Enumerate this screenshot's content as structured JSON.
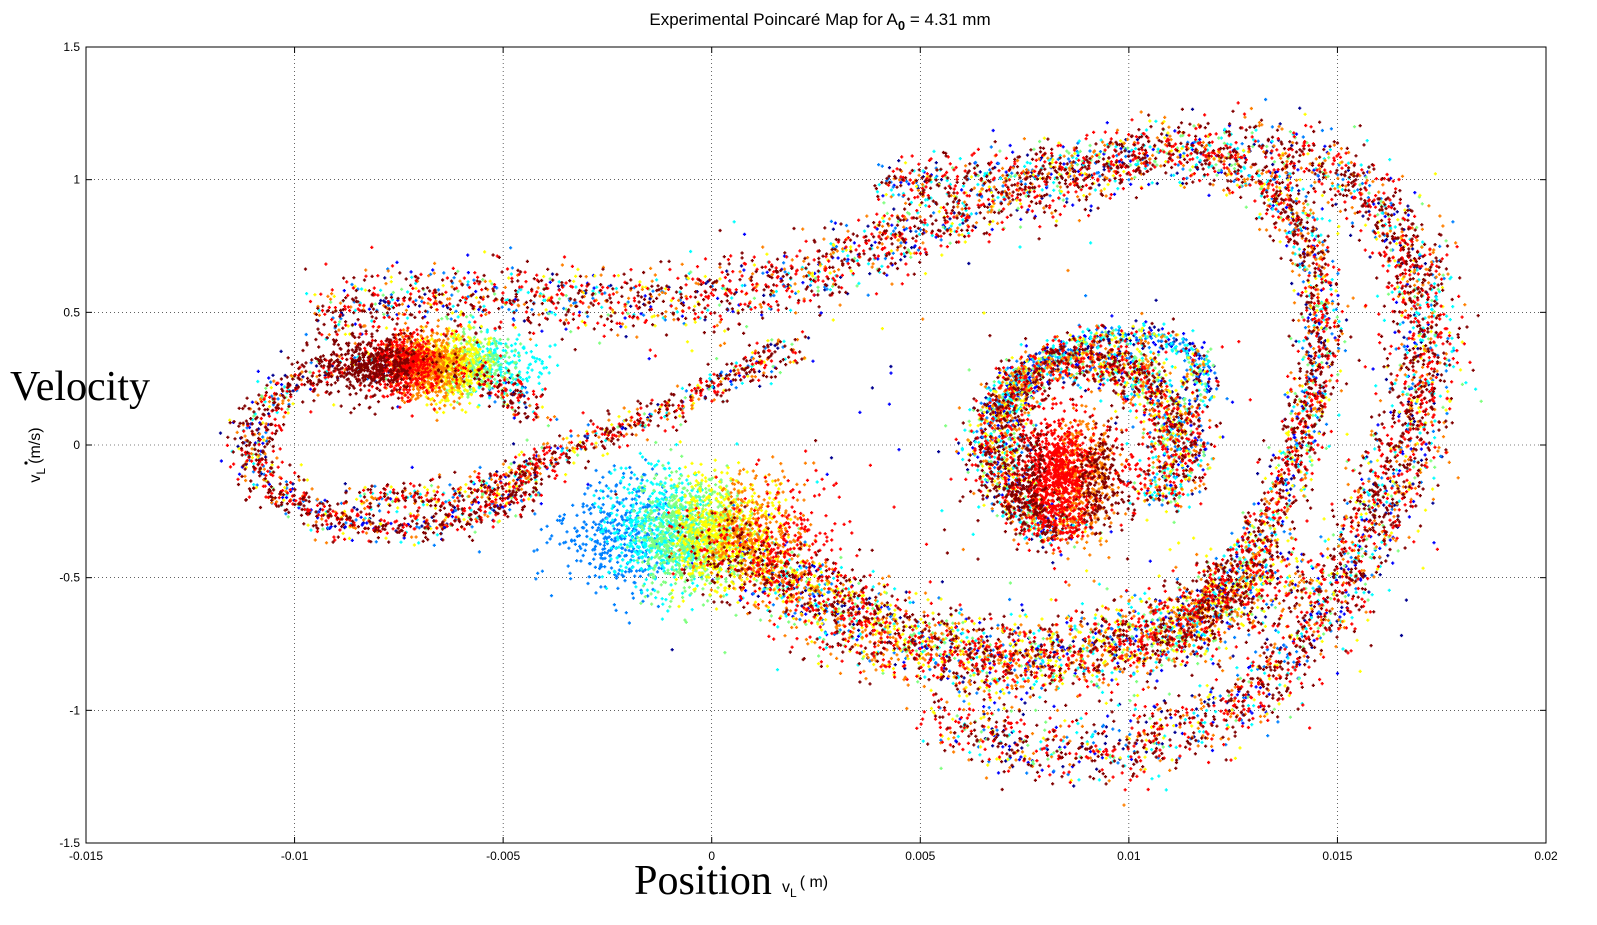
{
  "chart_data": {
    "type": "scatter",
    "title": "Experimental Poincaré Map for A",
    "title_subscript": "0",
    "title_suffix": " = 4.31 mm",
    "xlabel_big": "Position",
    "xlabel_unit_pre": "v",
    "xlabel_unit_sub": "L",
    "xlabel_unit_post": "( m)",
    "ylabel_big": "Velocity",
    "ylabel_unit_pre": "v",
    "ylabel_unit_sub": "L",
    "ylabel_unit_post": "(m/s)",
    "xlim": [
      -0.015,
      0.02
    ],
    "ylim": [
      -1.5,
      1.5
    ],
    "xticks": [
      -0.015,
      -0.01,
      -0.005,
      0,
      0.005,
      0.01,
      0.015,
      0.02
    ],
    "xtick_labels": [
      "-0.015",
      "-0.01",
      "-0.005",
      "0",
      "0.005",
      "0.01",
      "0.015",
      "0.02"
    ],
    "yticks": [
      -1.5,
      -1,
      -0.5,
      0,
      0.5,
      1,
      1.5
    ],
    "ytick_labels": [
      "-1.5",
      "-1",
      "-0.5",
      "0",
      "0.5",
      "1",
      "1.5"
    ],
    "grid": true,
    "grid_style": "dotted",
    "colormap": [
      "#00008f",
      "#0000ff",
      "#0080ff",
      "#00ffff",
      "#80ff80",
      "#ffff00",
      "#ff8000",
      "#ff0000",
      "#800000"
    ],
    "structures": [
      {
        "name": "left-lobe-loop",
        "kind": "ellipse-arc",
        "center": [
          -0.0075,
          0.0
        ],
        "radii": [
          0.0035,
          0.31
        ],
        "thickness": [
          0.0006,
          0.06
        ],
        "start_deg": 20,
        "end_deg": 340,
        "color_weights": [
          0.05,
          0.05,
          0.05,
          0.05,
          0.05,
          0.05,
          0.1,
          0.25,
          0.35
        ],
        "count": 1400
      },
      {
        "name": "left-dense-core",
        "kind": "blob",
        "center": [
          -0.0068,
          0.3
        ],
        "radii": [
          0.0019,
          0.11
        ],
        "gradient_x": [
          -0.0085,
          -0.0045
        ],
        "gradient_colors_idx": [
          8,
          7,
          6,
          5,
          4,
          3
        ],
        "count": 2200
      },
      {
        "name": "upper-band",
        "kind": "polyline-band",
        "points": [
          [
            -0.0095,
            0.48
          ],
          [
            -0.007,
            0.56
          ],
          [
            -0.004,
            0.56
          ],
          [
            -0.001,
            0.54
          ],
          [
            0.002,
            0.62
          ],
          [
            0.005,
            0.82
          ],
          [
            0.008,
            0.98
          ],
          [
            0.011,
            1.12
          ],
          [
            0.0135,
            1.12
          ],
          [
            0.0155,
            1.0
          ],
          [
            0.0168,
            0.72
          ],
          [
            0.0172,
            0.35
          ],
          [
            0.0165,
            -0.1
          ],
          [
            0.015,
            -0.55
          ],
          [
            0.013,
            -0.95
          ],
          [
            0.01,
            -1.15
          ],
          [
            0.0075,
            -1.15
          ],
          [
            0.0055,
            -1.02
          ]
        ],
        "width": [
          0.0009,
          0.13
        ],
        "color_weights": [
          0.04,
          0.05,
          0.06,
          0.07,
          0.05,
          0.06,
          0.12,
          0.25,
          0.3
        ],
        "count": 5200
      },
      {
        "name": "inner-band",
        "kind": "polyline-band",
        "points": [
          [
            0.004,
            0.98
          ],
          [
            0.008,
            1.05
          ],
          [
            0.0115,
            1.1
          ],
          [
            0.0135,
            0.98
          ],
          [
            0.0145,
            0.7
          ],
          [
            0.0146,
            0.3
          ],
          [
            0.0138,
            -0.15
          ],
          [
            0.0125,
            -0.5
          ],
          [
            0.011,
            -0.78
          ]
        ],
        "width": [
          0.0006,
          0.09
        ],
        "color_weights": [
          0.03,
          0.05,
          0.08,
          0.1,
          0.06,
          0.07,
          0.12,
          0.22,
          0.27
        ],
        "count": 2200
      },
      {
        "name": "lower-connecting-band",
        "kind": "polyline-band",
        "points": [
          [
            -0.0085,
            -0.2
          ],
          [
            -0.006,
            -0.2
          ],
          [
            -0.004,
            -0.05
          ],
          [
            -0.0015,
            0.1
          ],
          [
            0.0005,
            0.25
          ],
          [
            0.002,
            0.38
          ]
        ],
        "width": [
          0.0005,
          0.06
        ],
        "color_weights": [
          0.03,
          0.03,
          0.04,
          0.06,
          0.04,
          0.08,
          0.15,
          0.27,
          0.3
        ],
        "count": 800
      },
      {
        "name": "central-cloud",
        "kind": "blob",
        "center": [
          -0.0005,
          -0.33
        ],
        "radii": [
          0.0024,
          0.2
        ],
        "gradient_x": [
          -0.003,
          0.003
        ],
        "gradient_colors_idx": [
          2,
          3,
          4,
          5,
          6,
          7
        ],
        "count": 2600
      },
      {
        "name": "lower-swoosh",
        "kind": "polyline-band",
        "points": [
          [
            0.0,
            -0.35
          ],
          [
            0.002,
            -0.52
          ],
          [
            0.004,
            -0.7
          ],
          [
            0.006,
            -0.8
          ],
          [
            0.008,
            -0.82
          ],
          [
            0.01,
            -0.75
          ],
          [
            0.012,
            -0.62
          ],
          [
            0.0135,
            -0.45
          ]
        ],
        "width": [
          0.0012,
          0.15
        ],
        "color_weights": [
          0.03,
          0.04,
          0.05,
          0.06,
          0.08,
          0.14,
          0.18,
          0.22,
          0.2
        ],
        "count": 3600
      },
      {
        "name": "right-spiral-core",
        "kind": "ellipse-arc",
        "center": [
          0.009,
          0.0
        ],
        "radii": [
          0.0022,
          0.32
        ],
        "thickness": [
          0.0008,
          0.09
        ],
        "start_deg": -40,
        "end_deg": 260,
        "color_weights": [
          0.04,
          0.05,
          0.08,
          0.1,
          0.08,
          0.1,
          0.15,
          0.2,
          0.2
        ],
        "count": 2600
      },
      {
        "name": "right-spiral-center",
        "kind": "blob",
        "center": [
          0.0085,
          -0.12
        ],
        "radii": [
          0.0013,
          0.2
        ],
        "gradient_x": [
          0.007,
          0.0105
        ],
        "gradient_colors_idx": [
          8,
          7,
          7,
          6,
          8,
          7
        ],
        "count": 1600
      },
      {
        "name": "right-spiral-top-edge",
        "kind": "polyline-band",
        "points": [
          [
            0.0068,
            0.1
          ],
          [
            0.0075,
            0.28
          ],
          [
            0.009,
            0.4
          ],
          [
            0.0105,
            0.42
          ],
          [
            0.0115,
            0.35
          ],
          [
            0.0118,
            0.2
          ]
        ],
        "width": [
          0.0004,
          0.05
        ],
        "color_weights": [
          0.12,
          0.15,
          0.2,
          0.2,
          0.08,
          0.08,
          0.07,
          0.05,
          0.05
        ],
        "count": 700
      },
      {
        "name": "sparse-outliers",
        "kind": "uniform",
        "box": [
          [
            -0.011,
            -1.4
          ],
          [
            0.0175,
            1.2
          ]
        ],
        "color_weights": [
          0.15,
          0.15,
          0.1,
          0.1,
          0.1,
          0.1,
          0.1,
          0.1,
          0.1
        ],
        "count": 250
      }
    ]
  }
}
